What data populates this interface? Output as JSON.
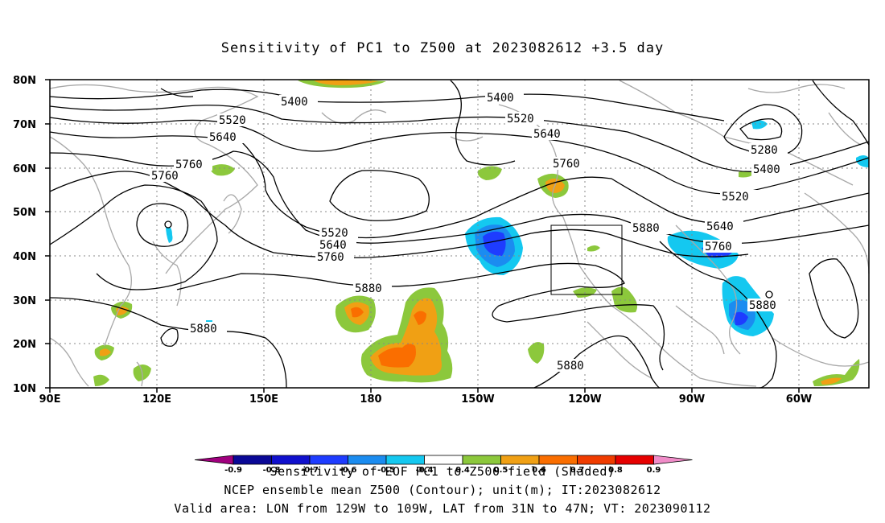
{
  "title": "Sensitivity of PC1 to Z500 at 2023082612 +3.5 day",
  "lat_labels": [
    "80N",
    "70N",
    "60N",
    "50N",
    "40N",
    "30N",
    "20N",
    "10N"
  ],
  "lon_labels": [
    "90E",
    "120E",
    "150E",
    "180",
    "150W",
    "120W",
    "90W",
    "60W"
  ],
  "contour_labels": [
    "5400",
    "5400",
    "5520",
    "5520",
    "5640",
    "5640",
    "5760",
    "5760",
    "5760",
    "5280",
    "5400",
    "5520",
    "5640",
    "5760",
    "5520",
    "5640",
    "5760",
    "5880",
    "5880",
    "5880",
    "5880",
    "5880"
  ],
  "colorbar": {
    "levels": [
      "-0.9",
      "-0.8",
      "-0.7",
      "-0.6",
      "-0.5",
      "-0.4",
      "0.4",
      "0.5",
      "0.6",
      "0.7",
      "0.8",
      "0.9"
    ],
    "colors": [
      "#a0007e",
      "#0a0896",
      "#1010cd",
      "#1e3cff",
      "#1b8cf0",
      "#14c8f0",
      "#ffffff",
      "#8cc83c",
      "#f0a014",
      "#fa6e00",
      "#f03c00",
      "#e60000",
      "#f08cc8"
    ]
  },
  "caption": {
    "line1": "Sensitivity of EOF PC1 to Z500 field (Shaded)",
    "line2": "NCEP ensemble mean Z500 (Contour); unit(m); IT:2023082612",
    "line3": "Valid area: LON from 129W to 109W, LAT from 31N to 47N; VT: 2023090112"
  },
  "colors": {
    "contour": "#000000",
    "coast": "#a8a8a8",
    "grid": "#888888"
  }
}
